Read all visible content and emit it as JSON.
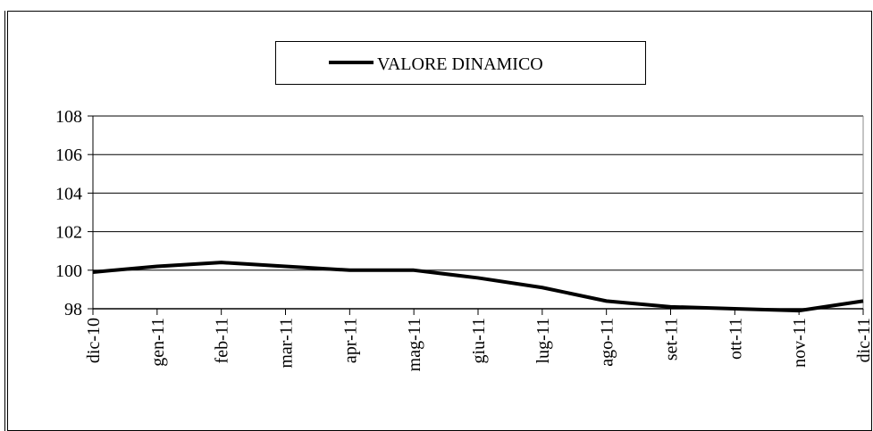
{
  "chart_data": {
    "type": "line",
    "categories": [
      "dic-10",
      "gen-11",
      "feb-11",
      "mar-11",
      "apr-11",
      "mag-11",
      "giu-11",
      "lug-11",
      "ago-11",
      "set-11",
      "ott-11",
      "nov-11",
      "dic-11"
    ],
    "series": [
      {
        "name": "VALORE DINAMICO",
        "color": "#000000",
        "values": [
          99.9,
          100.2,
          100.4,
          100.2,
          100.0,
          100.0,
          99.6,
          99.1,
          98.4,
          98.1,
          98.0,
          97.9,
          98.4
        ]
      }
    ],
    "ylim": [
      98,
      108
    ],
    "yticks": [
      98,
      100,
      102,
      104,
      106,
      108
    ],
    "grid": true,
    "legend": "top"
  }
}
